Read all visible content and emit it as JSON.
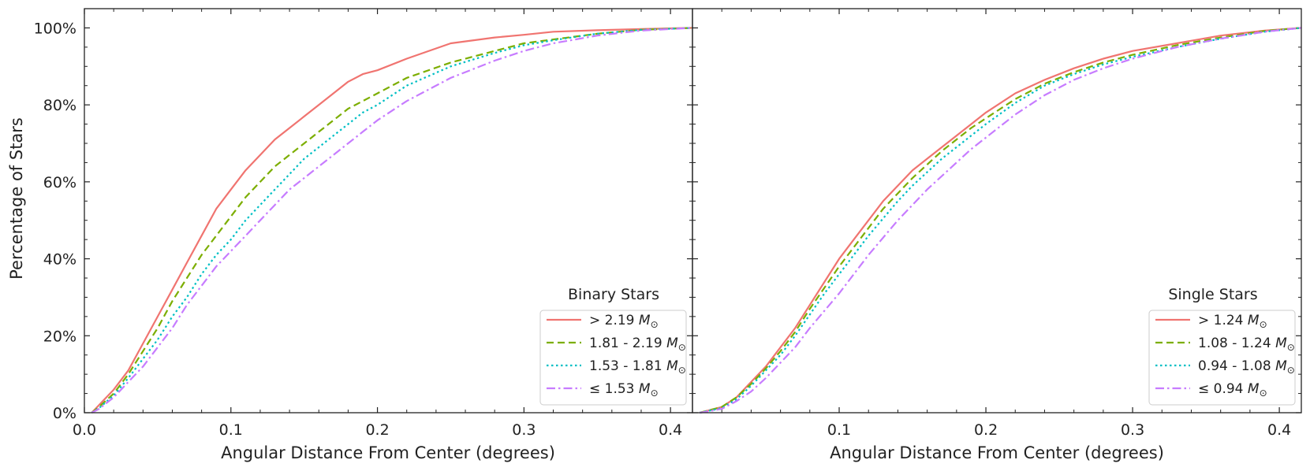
{
  "figure": {
    "ylabel": "Percentage of Stars"
  },
  "chart_data": [
    {
      "type": "line",
      "title": "Binary Stars",
      "xlabel": "Angular Distance From Center (degrees)",
      "ylabel": "Percentage of Stars",
      "xlim": [
        0.0,
        0.415
      ],
      "ylim": [
        0,
        105
      ],
      "xticks": [
        0.0,
        0.1,
        0.2,
        0.3,
        0.4
      ],
      "xtick_labels": [
        "0.0",
        "0.1",
        "0.2",
        "0.3",
        "0.4"
      ],
      "yticks": [
        0,
        20,
        40,
        60,
        80,
        100
      ],
      "ytick_labels": [
        "0%",
        "20%",
        "40%",
        "60%",
        "80%",
        "100%"
      ],
      "legend_title": "Binary Stars",
      "legend_position": "lower-right",
      "series": [
        {
          "name": "> 2.19",
          "label_prefix": ">",
          "label_value": "2.19",
          "unit": "M",
          "color": "#f07470",
          "style": "solid",
          "x": [
            0.005,
            0.01,
            0.02,
            0.03,
            0.04,
            0.05,
            0.06,
            0.07,
            0.08,
            0.09,
            0.1,
            0.11,
            0.12,
            0.13,
            0.14,
            0.15,
            0.16,
            0.17,
            0.18,
            0.19,
            0.2,
            0.22,
            0.25,
            0.28,
            0.3,
            0.32,
            0.35,
            0.38,
            0.415
          ],
          "y": [
            0,
            2,
            6,
            11,
            18,
            25,
            32,
            39,
            46,
            53,
            58,
            63,
            67,
            71,
            74,
            77,
            80,
            83,
            86,
            88,
            89,
            92,
            96,
            97.5,
            98.2,
            99,
            99.4,
            99.7,
            100
          ]
        },
        {
          "name": "1.81 - 2.19",
          "label_prefix": "",
          "label_value": "1.81 - 2.19",
          "unit": "M",
          "color": "#7cae00",
          "style": "dashed",
          "x": [
            0.005,
            0.01,
            0.02,
            0.03,
            0.04,
            0.05,
            0.06,
            0.07,
            0.08,
            0.09,
            0.1,
            0.11,
            0.12,
            0.13,
            0.14,
            0.15,
            0.16,
            0.17,
            0.18,
            0.19,
            0.2,
            0.22,
            0.25,
            0.28,
            0.3,
            0.32,
            0.35,
            0.38,
            0.415
          ],
          "y": [
            0,
            1.5,
            5,
            10,
            16,
            22,
            29,
            35,
            41,
            46,
            51,
            56,
            60,
            64,
            67,
            70,
            73,
            76,
            79,
            81,
            83,
            87,
            91,
            94,
            96,
            97,
            98.5,
            99.5,
            100
          ]
        },
        {
          "name": "1.53 - 1.81",
          "label_prefix": "",
          "label_value": "1.53 - 1.81",
          "unit": "M",
          "color": "#00bfc4",
          "style": "dotted",
          "x": [
            0.005,
            0.01,
            0.02,
            0.03,
            0.04,
            0.05,
            0.06,
            0.07,
            0.08,
            0.09,
            0.1,
            0.11,
            0.12,
            0.13,
            0.14,
            0.15,
            0.16,
            0.17,
            0.18,
            0.19,
            0.2,
            0.22,
            0.25,
            0.28,
            0.3,
            0.32,
            0.35,
            0.38,
            0.415
          ],
          "y": [
            0,
            1.2,
            4.5,
            9,
            14,
            19,
            25,
            30,
            36,
            41,
            45,
            50,
            54,
            58,
            62,
            66,
            69,
            72,
            75,
            78,
            80,
            85,
            90,
            93.5,
            95.5,
            96.8,
            98.5,
            99.5,
            100
          ]
        },
        {
          "name": "≤ 1.53",
          "label_prefix": "≤",
          "label_value": "1.53",
          "unit": "M",
          "color": "#c77cff",
          "style": "dashdot",
          "x": [
            0.005,
            0.01,
            0.02,
            0.03,
            0.04,
            0.05,
            0.06,
            0.07,
            0.08,
            0.09,
            0.1,
            0.11,
            0.12,
            0.13,
            0.14,
            0.15,
            0.16,
            0.17,
            0.18,
            0.19,
            0.2,
            0.22,
            0.25,
            0.28,
            0.3,
            0.32,
            0.35,
            0.38,
            0.415
          ],
          "y": [
            0,
            1,
            4,
            8,
            12,
            17,
            22,
            28,
            33,
            38,
            42,
            46,
            50,
            54,
            58,
            61,
            64,
            67,
            70,
            73,
            76,
            81,
            87,
            91.5,
            94,
            96,
            98,
            99.3,
            100
          ]
        }
      ]
    },
    {
      "type": "line",
      "title": "Single Stars",
      "xlabel": "Angular Distance From Center (degrees)",
      "ylabel": "",
      "xlim": [
        0.0,
        0.415
      ],
      "ylim": [
        0,
        105
      ],
      "xticks": [
        0.1,
        0.2,
        0.3,
        0.4
      ],
      "xtick_labels": [
        "0.1",
        "0.2",
        "0.3",
        "0.4"
      ],
      "yticks": [
        0,
        20,
        40,
        60,
        80,
        100
      ],
      "ytick_labels": [],
      "legend_title": "Single Stars",
      "legend_position": "lower-right",
      "series": [
        {
          "name": "> 1.24",
          "label_prefix": ">",
          "label_value": "1.24",
          "unit": "M",
          "color": "#f07470",
          "style": "solid",
          "x": [
            0.005,
            0.01,
            0.02,
            0.03,
            0.04,
            0.05,
            0.06,
            0.07,
            0.08,
            0.09,
            0.1,
            0.11,
            0.12,
            0.13,
            0.14,
            0.15,
            0.16,
            0.17,
            0.18,
            0.19,
            0.2,
            0.22,
            0.24,
            0.26,
            0.28,
            0.3,
            0.33,
            0.36,
            0.39,
            0.415
          ],
          "y": [
            0,
            0.5,
            1.5,
            4,
            8,
            12,
            17,
            22,
            28,
            34,
            40,
            45,
            50,
            55,
            59,
            63,
            66,
            69,
            72,
            75,
            78,
            83,
            86.5,
            89.5,
            92,
            94,
            96,
            98,
            99.3,
            100
          ]
        },
        {
          "name": "1.08 - 1.24",
          "label_prefix": "",
          "label_value": "1.08 - 1.24",
          "unit": "M",
          "color": "#7cae00",
          "style": "dashed",
          "x": [
            0.005,
            0.01,
            0.02,
            0.03,
            0.04,
            0.05,
            0.06,
            0.07,
            0.08,
            0.09,
            0.1,
            0.11,
            0.12,
            0.13,
            0.14,
            0.15,
            0.16,
            0.17,
            0.18,
            0.19,
            0.2,
            0.22,
            0.24,
            0.26,
            0.28,
            0.3,
            0.33,
            0.36,
            0.39,
            0.415
          ],
          "y": [
            0,
            0.5,
            1.5,
            4,
            7.5,
            11.5,
            16,
            21,
            27,
            32.5,
            38,
            43,
            48,
            53,
            57,
            61,
            64.5,
            68,
            71,
            74,
            76.5,
            81.5,
            85.5,
            88.5,
            91,
            93,
            95.5,
            97.5,
            99.2,
            100
          ]
        },
        {
          "name": "0.94 - 1.08",
          "label_prefix": "",
          "label_value": "0.94 - 1.08",
          "unit": "M",
          "color": "#00bfc4",
          "style": "dotted",
          "x": [
            0.005,
            0.01,
            0.02,
            0.03,
            0.04,
            0.05,
            0.06,
            0.07,
            0.08,
            0.09,
            0.1,
            0.11,
            0.12,
            0.13,
            0.14,
            0.15,
            0.16,
            0.17,
            0.18,
            0.19,
            0.2,
            0.22,
            0.24,
            0.26,
            0.28,
            0.3,
            0.33,
            0.36,
            0.39,
            0.415
          ],
          "y": [
            0,
            0.4,
            1.2,
            3.5,
            7,
            11,
            15,
            20,
            25.5,
            31,
            36,
            41,
            46,
            50.5,
            55,
            59,
            62.5,
            66,
            69,
            72,
            75,
            80.5,
            85,
            88,
            90.5,
            92.5,
            95,
            97.2,
            99,
            100
          ]
        },
        {
          "name": "≤ 0.94",
          "label_prefix": "≤",
          "label_value": "0.94",
          "unit": "M",
          "color": "#c77cff",
          "style": "dashdot",
          "x": [
            0.005,
            0.01,
            0.02,
            0.03,
            0.04,
            0.05,
            0.06,
            0.07,
            0.08,
            0.09,
            0.1,
            0.11,
            0.12,
            0.13,
            0.14,
            0.15,
            0.16,
            0.17,
            0.18,
            0.19,
            0.2,
            0.22,
            0.24,
            0.26,
            0.28,
            0.3,
            0.33,
            0.36,
            0.39,
            0.415
          ],
          "y": [
            0,
            0.3,
            1,
            3,
            5.5,
            9,
            13,
            17,
            22,
            26.5,
            31,
            36,
            41,
            45.5,
            50,
            54,
            58,
            61.5,
            65,
            68.5,
            71.5,
            77.5,
            82.5,
            86.5,
            89.5,
            92,
            95,
            97.2,
            99,
            100
          ]
        }
      ]
    }
  ]
}
